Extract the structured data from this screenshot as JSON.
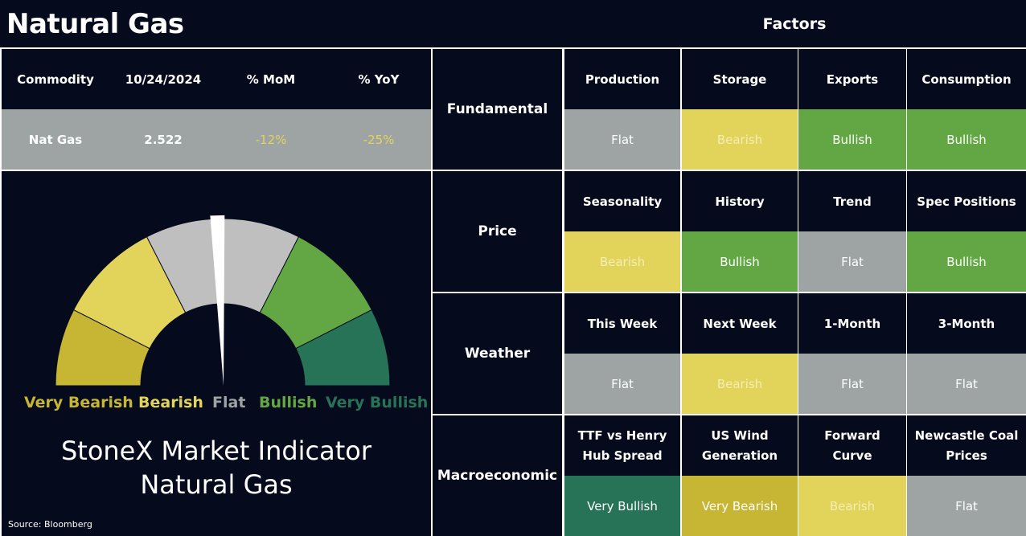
{
  "title": "Natural Gas",
  "factors_title": "Factors",
  "colors": {
    "background": "#050a1c",
    "gray": "#9ea4a3",
    "yellow": "#e2d45a",
    "dark_yellow": "#c6b634",
    "green": "#62a744",
    "dark_green": "#267357",
    "neg_value": "#e2d45a"
  },
  "commodity_table": {
    "headers": [
      "Commodity",
      "10/24/2024",
      "% MoM",
      "% YoY"
    ],
    "row": [
      "Nat Gas",
      "2.522",
      "-12%",
      "-25%"
    ]
  },
  "factors": [
    {
      "category": "Fundamental",
      "items": [
        {
          "label": "Production",
          "value": "Flat"
        },
        {
          "label": "Storage",
          "value": "Bearish"
        },
        {
          "label": "Exports",
          "value": "Bullish"
        },
        {
          "label": "Consumption",
          "value": "Bullish"
        }
      ]
    },
    {
      "category": "Price",
      "items": [
        {
          "label": "Seasonality",
          "value": "Bearish"
        },
        {
          "label": "History",
          "value": "Bullish"
        },
        {
          "label": "Trend",
          "value": "Flat"
        },
        {
          "label": "Spec Positions",
          "value": "Bullish"
        }
      ]
    },
    {
      "category": "Weather",
      "items": [
        {
          "label": "This Week",
          "value": "Flat"
        },
        {
          "label": "Next Week",
          "value": "Bearish"
        },
        {
          "label": "1-Month",
          "value": "Flat"
        },
        {
          "label": "3-Month",
          "value": "Flat"
        }
      ]
    },
    {
      "category": "Macroeconomic",
      "items": [
        {
          "label": "TTF vs Henry Hub Spread",
          "line1": "TTF vs Henry",
          "line2": "Hub Spread",
          "value": "Very Bullish"
        },
        {
          "label": "US Wind Generation",
          "line1": "US Wind",
          "line2": "Generation",
          "value": "Very Bearish"
        },
        {
          "label": "Forward Curve",
          "line1": "Forward",
          "line2": "Curve",
          "value": "Bearish"
        },
        {
          "label": "Newcastle Coal Prices",
          "line1": "Newcastle Coal",
          "line2": "Prices",
          "value": "Flat"
        }
      ]
    }
  ],
  "gauge": {
    "labels": [
      "Very Bearish",
      "Bearish",
      "Flat",
      "Bullish",
      "Very Bullish"
    ],
    "needle_value": "Flat",
    "needle_fraction": 0.49
  },
  "indicator_title_line1": "StoneX Market Indicator",
  "indicator_title_line2": "Natural Gas",
  "source": "Source: Bloomberg"
}
